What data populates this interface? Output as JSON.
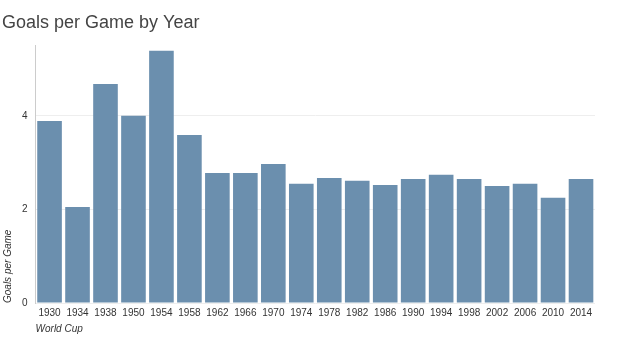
{
  "chart_data": {
    "type": "bar",
    "title": "Goals per Game by Year",
    "x_label": "World Cup",
    "y_label": "Goals per Game",
    "categories": [
      "1930",
      "1934",
      "1938",
      "1950",
      "1954",
      "1958",
      "1962",
      "1966",
      "1970",
      "1974",
      "1978",
      "1982",
      "1986",
      "1990",
      "1994",
      "1998",
      "2002",
      "2006",
      "2010",
      "2014"
    ],
    "values": [
      3.89,
      2.05,
      4.68,
      4.0,
      5.39,
      3.59,
      2.78,
      2.78,
      2.97,
      2.55,
      2.67,
      2.61,
      2.52,
      2.65,
      2.74,
      2.65,
      2.5,
      2.55,
      2.25,
      2.65
    ],
    "color": "#6b8fae",
    "ylim": [
      0,
      5.5
    ],
    "yticks": [
      0,
      2,
      4
    ],
    "grid": true
  }
}
